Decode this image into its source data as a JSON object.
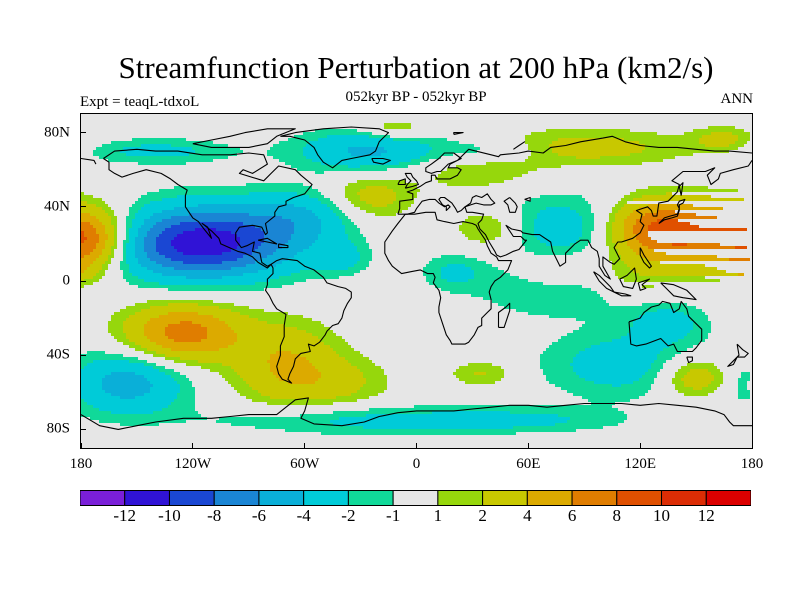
{
  "figure": {
    "title": "Streamfunction Perturbation at 200 hPa (km2/s)",
    "subtitle": "052kyr BP - 052kyr BP",
    "left_label": "Expt = teaqL-tdxoL",
    "right_label": "ANN"
  },
  "chart_data": {
    "type": "heatmap",
    "projection": "cylindrical-equidistant",
    "title": "Streamfunction Perturbation at 200 hPa (km2/s)",
    "units": "km2/s",
    "xlim": [
      -180,
      180
    ],
    "ylim": [
      -90,
      90
    ],
    "x_ticks": [
      {
        "value": -180,
        "label": "180"
      },
      {
        "value": -120,
        "label": "120W"
      },
      {
        "value": -60,
        "label": "60W"
      },
      {
        "value": 0,
        "label": "0"
      },
      {
        "value": 60,
        "label": "60E"
      },
      {
        "value": 120,
        "label": "120E"
      },
      {
        "value": 180,
        "label": "180"
      }
    ],
    "y_ticks": [
      {
        "value": 80,
        "label": "80N"
      },
      {
        "value": 40,
        "label": "40N"
      },
      {
        "value": 0,
        "label": "0"
      },
      {
        "value": -40,
        "label": "40S"
      },
      {
        "value": -80,
        "label": "80S"
      }
    ],
    "levels": [
      -12,
      -10,
      -8,
      -6,
      -4,
      -2,
      -1,
      1,
      2,
      4,
      6,
      8,
      10,
      12
    ],
    "level_labels": [
      "-12",
      "-10",
      "-8",
      "-6",
      "-4",
      "-2",
      "-1",
      "1",
      "2",
      "4",
      "6",
      "8",
      "10",
      "12"
    ],
    "colors": [
      "#7a1fd8",
      "#3013d6",
      "#1a47d3",
      "#1a85d4",
      "#0aafd8",
      "#00cbd8",
      "#10d999",
      "#e6e6e6",
      "#96d70c",
      "#c8c800",
      "#dcaa00",
      "#e07d00",
      "#e05000",
      "#dc2d05",
      "#dc0000"
    ],
    "field_features": [
      {
        "lon": -110,
        "lat": 22,
        "amp": -8.5,
        "slon": 35,
        "slat": 14
      },
      {
        "lon": -125,
        "lat": 18,
        "amp": -3.5,
        "slon": 30,
        "slat": 12
      },
      {
        "lon": -60,
        "lat": 35,
        "amp": -3.0,
        "slon": 20,
        "slat": 10
      },
      {
        "lon": -40,
        "lat": 12,
        "amp": -2.2,
        "slon": 10,
        "slat": 6
      },
      {
        "lon": 20,
        "lat": 5,
        "amp": -2.2,
        "slon": 12,
        "slat": 7
      },
      {
        "lon": -25,
        "lat": 70,
        "amp": -4.5,
        "slon": 28,
        "slat": 8
      },
      {
        "lon": -140,
        "lat": 70,
        "amp": -2.5,
        "slon": 30,
        "slat": 5
      },
      {
        "lon": 40,
        "lat": 70,
        "amp": -2.5,
        "slon": 20,
        "slat": 5
      },
      {
        "lon": 80,
        "lat": 28,
        "amp": -3.5,
        "slon": 25,
        "slat": 13
      },
      {
        "lon": 75,
        "lat": -5,
        "amp": -2.3,
        "slon": 30,
        "slat": 10
      },
      {
        "lon": 110,
        "lat": -45,
        "amp": -3.0,
        "slon": 30,
        "slat": 13
      },
      {
        "lon": 135,
        "lat": -22,
        "amp": -2.5,
        "slon": 15,
        "slat": 8
      },
      {
        "lon": -155,
        "lat": -55,
        "amp": -5.0,
        "slon": 22,
        "slat": 12
      },
      {
        "lon": -40,
        "lat": -75,
        "amp": -2.5,
        "slon": 50,
        "slat": 6
      },
      {
        "lon": 55,
        "lat": -75,
        "amp": -2.2,
        "slon": 40,
        "slat": 5
      },
      {
        "lon": 150,
        "lat": 24,
        "amp": 7.5,
        "slon": 30,
        "slat": 13
      },
      {
        "lon": 125,
        "lat": 30,
        "amp": 4.0,
        "slon": 16,
        "slat": 10
      },
      {
        "lon": -175,
        "lat": 22,
        "amp": 6.0,
        "slon": 15,
        "slat": 11
      },
      {
        "lon": -125,
        "lat": -28,
        "amp": 7.0,
        "slon": 22,
        "slat": 11
      },
      {
        "lon": -70,
        "lat": -45,
        "amp": 4.0,
        "slon": 20,
        "slat": 16
      },
      {
        "lon": -40,
        "lat": -55,
        "amp": 2.0,
        "slon": 20,
        "slat": 10
      },
      {
        "lon": -25,
        "lat": 45,
        "amp": 3.0,
        "slon": 16,
        "slat": 9
      },
      {
        "lon": -12,
        "lat": 82,
        "amp": 2.5,
        "slon": 12,
        "slat": 4
      },
      {
        "lon": 90,
        "lat": 72,
        "amp": 2.8,
        "slon": 40,
        "slat": 7
      },
      {
        "lon": 165,
        "lat": 76,
        "amp": 2.5,
        "slon": 12,
        "slat": 5
      },
      {
        "lon": 30,
        "lat": 60,
        "amp": 2.0,
        "slon": 25,
        "slat": 8
      },
      {
        "lon": 40,
        "lat": 28,
        "amp": 2.6,
        "slon": 14,
        "slat": 8
      },
      {
        "lon": 75,
        "lat": 5,
        "amp": 2.0,
        "slon": 15,
        "slat": 8
      },
      {
        "lon": 115,
        "lat": 0,
        "amp": 1.5,
        "slon": 15,
        "slat": 8
      },
      {
        "lon": 150,
        "lat": -52,
        "amp": 4.0,
        "slon": 14,
        "slat": 8
      },
      {
        "lon": 35,
        "lat": -50,
        "amp": 2.2,
        "slon": 12,
        "slat": 5
      },
      {
        "lon": 175,
        "lat": 5,
        "amp": 2.0,
        "slon": 10,
        "slat": 5
      }
    ]
  }
}
